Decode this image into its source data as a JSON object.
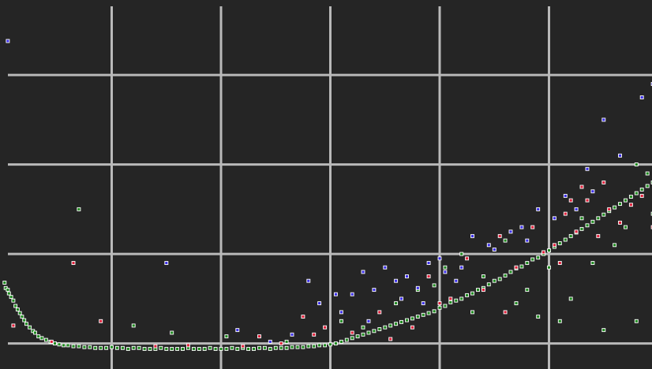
{
  "chart_data": {
    "type": "scatter",
    "title": "",
    "xlabel": "",
    "ylabel": "",
    "xlim": [
      0,
      6
    ],
    "ylim": [
      0,
      4
    ],
    "grid": true,
    "x_gridlines": [
      1,
      2,
      3,
      4,
      5
    ],
    "y_gridlines": [
      0.1,
      1.1,
      2.1,
      3.1
    ],
    "series": [
      {
        "color": "#1f8a1f",
        "points": [
          [
            0.02,
            0.78
          ],
          [
            0.03,
            0.72
          ],
          [
            0.05,
            0.7
          ],
          [
            0.06,
            0.66
          ],
          [
            0.08,
            0.62
          ],
          [
            0.1,
            0.58
          ],
          [
            0.12,
            0.52
          ],
          [
            0.14,
            0.48
          ],
          [
            0.16,
            0.44
          ],
          [
            0.18,
            0.4
          ],
          [
            0.2,
            0.36
          ],
          [
            0.22,
            0.32
          ],
          [
            0.25,
            0.28
          ],
          [
            0.28,
            0.24
          ],
          [
            0.3,
            0.22
          ],
          [
            0.33,
            0.18
          ],
          [
            0.36,
            0.16
          ],
          [
            0.4,
            0.14
          ],
          [
            0.44,
            0.12
          ],
          [
            0.48,
            0.1
          ],
          [
            0.52,
            0.09
          ],
          [
            0.56,
            0.08
          ],
          [
            0.6,
            0.08
          ],
          [
            0.65,
            0.07
          ],
          [
            0.7,
            0.07
          ],
          [
            0.75,
            0.06
          ],
          [
            0.8,
            0.06
          ],
          [
            0.85,
            0.05
          ],
          [
            0.9,
            0.05
          ],
          [
            0.95,
            0.05
          ],
          [
            1.0,
            0.06
          ],
          [
            1.05,
            0.05
          ],
          [
            1.1,
            0.05
          ],
          [
            1.15,
            0.04
          ],
          [
            1.2,
            0.05
          ],
          [
            1.25,
            0.05
          ],
          [
            1.3,
            0.04
          ],
          [
            1.35,
            0.04
          ],
          [
            1.4,
            0.04
          ],
          [
            1.45,
            0.05
          ],
          [
            1.5,
            0.04
          ],
          [
            1.55,
            0.04
          ],
          [
            1.6,
            0.04
          ],
          [
            1.65,
            0.04
          ],
          [
            1.7,
            0.05
          ],
          [
            1.75,
            0.04
          ],
          [
            1.8,
            0.04
          ],
          [
            1.85,
            0.04
          ],
          [
            1.9,
            0.05
          ],
          [
            1.95,
            0.04
          ],
          [
            2.0,
            0.04
          ],
          [
            2.05,
            0.04
          ],
          [
            2.1,
            0.05
          ],
          [
            2.15,
            0.04
          ],
          [
            2.2,
            0.05
          ],
          [
            2.25,
            0.04
          ],
          [
            2.3,
            0.04
          ],
          [
            2.35,
            0.05
          ],
          [
            2.4,
            0.05
          ],
          [
            2.45,
            0.04
          ],
          [
            2.5,
            0.05
          ],
          [
            2.55,
            0.05
          ],
          [
            2.6,
            0.05
          ],
          [
            2.65,
            0.06
          ],
          [
            2.7,
            0.06
          ],
          [
            2.75,
            0.06
          ],
          [
            2.8,
            0.07
          ],
          [
            2.85,
            0.07
          ],
          [
            2.9,
            0.08
          ],
          [
            2.95,
            0.08
          ],
          [
            3.0,
            0.09
          ],
          [
            3.05,
            0.1
          ],
          [
            3.1,
            0.12
          ],
          [
            3.15,
            0.14
          ],
          [
            3.2,
            0.16
          ],
          [
            3.25,
            0.18
          ],
          [
            3.3,
            0.2
          ],
          [
            3.35,
            0.22
          ],
          [
            3.4,
            0.24
          ],
          [
            3.45,
            0.26
          ],
          [
            3.5,
            0.28
          ],
          [
            3.55,
            0.3
          ],
          [
            3.6,
            0.32
          ],
          [
            3.65,
            0.34
          ],
          [
            3.7,
            0.36
          ],
          [
            3.75,
            0.38
          ],
          [
            3.8,
            0.4
          ],
          [
            3.85,
            0.42
          ],
          [
            3.9,
            0.44
          ],
          [
            3.95,
            0.46
          ],
          [
            4.0,
            0.5
          ],
          [
            4.05,
            0.52
          ],
          [
            4.1,
            0.56
          ],
          [
            4.15,
            0.58
          ],
          [
            4.2,
            0.6
          ],
          [
            4.25,
            0.64
          ],
          [
            4.3,
            0.66
          ],
          [
            4.35,
            0.7
          ],
          [
            4.4,
            0.72
          ],
          [
            4.45,
            0.76
          ],
          [
            4.5,
            0.8
          ],
          [
            4.55,
            0.82
          ],
          [
            4.6,
            0.86
          ],
          [
            4.65,
            0.9
          ],
          [
            4.7,
            0.94
          ],
          [
            4.75,
            0.96
          ],
          [
            4.8,
            1.0
          ],
          [
            4.85,
            1.04
          ],
          [
            4.9,
            1.06
          ],
          [
            4.95,
            1.1
          ],
          [
            5.0,
            1.14
          ],
          [
            5.05,
            1.18
          ],
          [
            5.1,
            1.22
          ],
          [
            5.15,
            1.26
          ],
          [
            5.2,
            1.3
          ],
          [
            5.25,
            1.34
          ],
          [
            5.3,
            1.38
          ],
          [
            5.35,
            1.42
          ],
          [
            5.4,
            1.46
          ],
          [
            5.45,
            1.5
          ],
          [
            5.5,
            1.54
          ],
          [
            5.55,
            1.58
          ],
          [
            5.6,
            1.62
          ],
          [
            5.65,
            1.66
          ],
          [
            5.7,
            1.7
          ],
          [
            5.75,
            1.74
          ],
          [
            5.8,
            1.78
          ],
          [
            5.85,
            1.82
          ],
          [
            5.9,
            1.86
          ],
          [
            5.95,
            1.9
          ],
          [
            0.7,
            1.6
          ],
          [
            1.2,
            0.3
          ],
          [
            1.55,
            0.22
          ],
          [
            2.05,
            0.18
          ],
          [
            2.6,
            0.12
          ],
          [
            3.1,
            0.35
          ],
          [
            3.3,
            0.28
          ],
          [
            3.6,
            0.55
          ],
          [
            3.8,
            0.7
          ],
          [
            4.05,
            0.95
          ],
          [
            4.2,
            1.1
          ],
          [
            4.4,
            0.85
          ],
          [
            4.6,
            1.25
          ],
          [
            4.8,
            0.7
          ],
          [
            5.0,
            0.95
          ],
          [
            5.2,
            0.6
          ],
          [
            5.4,
            1.0
          ],
          [
            5.6,
            1.2
          ],
          [
            5.8,
            2.1
          ],
          [
            5.9,
            2.0
          ],
          [
            5.1,
            0.35
          ],
          [
            4.9,
            0.4
          ],
          [
            5.5,
            0.25
          ],
          [
            5.8,
            0.35
          ],
          [
            3.95,
            0.75
          ],
          [
            4.3,
            0.45
          ],
          [
            4.7,
            0.55
          ],
          [
            5.3,
            1.5
          ],
          [
            5.7,
            1.4
          ],
          [
            5.95,
            1.55
          ]
        ]
      },
      {
        "color": "#e0203a",
        "points": [
          [
            0.1,
            0.3
          ],
          [
            0.45,
            0.12
          ],
          [
            0.65,
            1.0
          ],
          [
            0.9,
            0.35
          ],
          [
            1.4,
            0.07
          ],
          [
            1.7,
            0.08
          ],
          [
            2.2,
            0.07
          ],
          [
            2.35,
            0.18
          ],
          [
            2.55,
            0.1
          ],
          [
            2.75,
            0.4
          ],
          [
            2.85,
            0.2
          ],
          [
            2.95,
            0.28
          ],
          [
            3.2,
            0.22
          ],
          [
            3.45,
            0.45
          ],
          [
            3.55,
            0.15
          ],
          [
            3.75,
            0.28
          ],
          [
            3.9,
            0.85
          ],
          [
            4.1,
            0.6
          ],
          [
            4.25,
            1.05
          ],
          [
            4.4,
            0.7
          ],
          [
            4.55,
            1.3
          ],
          [
            4.7,
            0.95
          ],
          [
            4.85,
            1.4
          ],
          [
            4.95,
            1.12
          ],
          [
            5.05,
            1.2
          ],
          [
            5.15,
            1.55
          ],
          [
            5.25,
            1.35
          ],
          [
            5.35,
            1.7
          ],
          [
            5.45,
            1.3
          ],
          [
            5.55,
            1.6
          ],
          [
            5.65,
            1.45
          ],
          [
            5.75,
            1.65
          ],
          [
            5.85,
            1.75
          ],
          [
            5.95,
            1.4
          ],
          [
            4.6,
            0.45
          ],
          [
            5.1,
            1.0
          ],
          [
            5.3,
            1.85
          ],
          [
            5.5,
            1.9
          ],
          [
            5.2,
            1.7
          ],
          [
            4.0,
            0.55
          ]
        ]
      },
      {
        "color": "#3a2ee8",
        "points": [
          [
            0.05,
            3.48
          ],
          [
            1.5,
            1.0
          ],
          [
            2.15,
            0.25
          ],
          [
            2.45,
            0.12
          ],
          [
            2.65,
            0.2
          ],
          [
            2.8,
            0.8
          ],
          [
            2.9,
            0.55
          ],
          [
            3.05,
            0.65
          ],
          [
            3.2,
            0.65
          ],
          [
            3.3,
            0.9
          ],
          [
            3.4,
            0.7
          ],
          [
            3.5,
            0.95
          ],
          [
            3.6,
            0.8
          ],
          [
            3.7,
            0.85
          ],
          [
            3.8,
            0.72
          ],
          [
            3.9,
            1.0
          ],
          [
            4.0,
            1.05
          ],
          [
            4.05,
            0.9
          ],
          [
            4.15,
            0.8
          ],
          [
            4.3,
            1.3
          ],
          [
            4.5,
            1.15
          ],
          [
            4.65,
            1.35
          ],
          [
            4.75,
            1.4
          ],
          [
            4.9,
            1.6
          ],
          [
            5.05,
            1.5
          ],
          [
            5.15,
            1.75
          ],
          [
            5.25,
            1.6
          ],
          [
            5.4,
            1.8
          ],
          [
            5.5,
            2.6
          ],
          [
            5.65,
            2.2
          ],
          [
            5.85,
            2.85
          ],
          [
            5.95,
            3.0
          ],
          [
            3.1,
            0.45
          ],
          [
            3.35,
            0.35
          ],
          [
            3.65,
            0.6
          ],
          [
            3.85,
            0.55
          ],
          [
            4.2,
            0.95
          ],
          [
            4.45,
            1.2
          ],
          [
            4.8,
            1.25
          ],
          [
            5.35,
            2.05
          ]
        ]
      }
    ]
  }
}
